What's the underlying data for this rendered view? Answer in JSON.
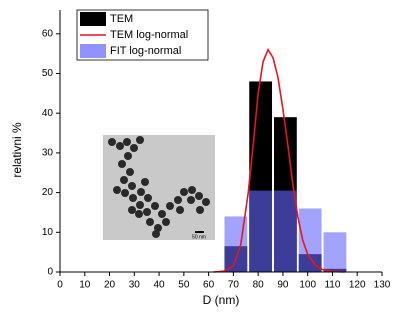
{
  "chart_data": {
    "type": "histogram",
    "xlabel": "D (nm)",
    "ylabel": "relativni %",
    "bins": [
      66,
      76,
      86,
      96,
      106,
      116
    ],
    "series": [
      {
        "name": "TEM",
        "color": "#000000",
        "values": [
          6.5,
          48,
          39,
          4.5,
          0.8
        ]
      },
      {
        "name": "TEM log-normal",
        "color": "#e8141e",
        "x": [
          62,
          66,
          70,
          73,
          76,
          78,
          80,
          82,
          84,
          86,
          88,
          90,
          92,
          94,
          96,
          98,
          100,
          103,
          106,
          110,
          115
        ],
        "values": [
          0,
          0.2,
          1.5,
          7,
          20,
          32,
          45,
          53,
          56,
          54,
          49,
          41,
          32,
          22,
          14,
          8,
          4.5,
          1.8,
          0.6,
          0.1,
          0
        ]
      },
      {
        "name": "FIT log-normal",
        "color": "#6464ff",
        "values": [
          14,
          20.5,
          20.5,
          16,
          10
        ]
      }
    ],
    "xlim": [
      0,
      130
    ],
    "xticks": [
      0,
      10,
      20,
      30,
      40,
      50,
      60,
      70,
      80,
      90,
      100,
      110,
      120,
      130
    ],
    "ylim": [
      0,
      66
    ],
    "yticks": [
      0,
      10,
      20,
      30,
      40,
      50,
      60
    ],
    "legend": "upper left",
    "inset_label": "50 nm"
  }
}
